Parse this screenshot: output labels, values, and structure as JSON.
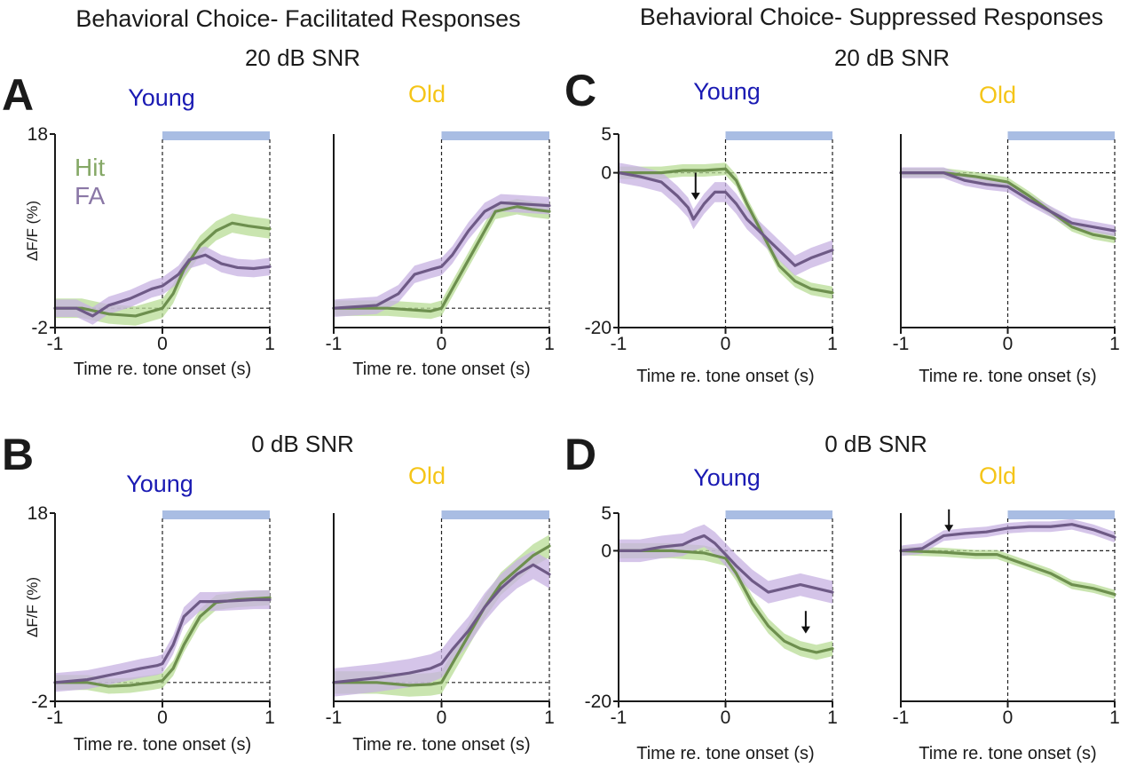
{
  "headers": {
    "left": "Behavioral Choice- Facilitated Responses",
    "right": "Behavioral Choice- Suppressed Responses"
  },
  "colors": {
    "young": "#1a1ab3",
    "old": "#f5c518",
    "hit": "#6d8f4e",
    "hit_band": "#b8dc95",
    "fa": "#6e5a86",
    "fa_band": "#c7b2e2",
    "tone_bar": "#a9bde3",
    "axis": "#1a1a1a"
  },
  "legend": {
    "hit": "Hit",
    "fa": "FA"
  },
  "chart_data": [
    {
      "type": "line",
      "panel": "A",
      "condition": "20 dB SNR",
      "group": "Young",
      "xlabel": "Time re. tone onset (s)",
      "ylabel": "ΔF/F (%)",
      "xlim": [
        -1,
        1
      ],
      "ylim": [
        -2,
        18
      ],
      "xticks": [
        "-1",
        "0",
        "1"
      ],
      "yticks": [
        "-2",
        "18"
      ],
      "tone_bar": [
        0,
        1
      ],
      "series": [
        {
          "name": "Hit",
          "x": [
            -1,
            -0.75,
            -0.5,
            -0.25,
            0,
            0.1,
            0.2,
            0.35,
            0.5,
            0.65,
            0.8,
            1
          ],
          "y": [
            0,
            0,
            -0.6,
            -0.8,
            0,
            1.5,
            4,
            6.5,
            8,
            8.8,
            8.5,
            8.2
          ],
          "err": 1
        },
        {
          "name": "FA",
          "x": [
            -1,
            -0.8,
            -0.65,
            -0.5,
            -0.3,
            -0.1,
            0,
            0.15,
            0.25,
            0.4,
            0.55,
            0.7,
            0.85,
            1
          ],
          "y": [
            0,
            0,
            -0.8,
            0.3,
            1,
            2,
            2.3,
            3.5,
            5,
            5.5,
            4.6,
            4.2,
            4.1,
            4.3
          ],
          "err": 0.9
        }
      ]
    },
    {
      "type": "line",
      "panel": "A",
      "condition": "20 dB SNR",
      "group": "Old",
      "xlabel": "Time re. tone onset (s)",
      "xlim": [
        -1,
        1
      ],
      "ylim": [
        -2,
        18
      ],
      "xticks": [
        "-1",
        "0",
        "1"
      ],
      "tone_bar": [
        0,
        1
      ],
      "series": [
        {
          "name": "Hit",
          "x": [
            -1,
            -0.5,
            -0.1,
            0,
            0.1,
            0.25,
            0.4,
            0.5,
            0.7,
            0.85,
            1
          ],
          "y": [
            0,
            0,
            -0.3,
            0,
            2,
            5,
            8,
            10,
            10.5,
            10.2,
            10
          ],
          "err": 0.8
        },
        {
          "name": "FA",
          "x": [
            -1,
            -0.6,
            -0.4,
            -0.25,
            -0.1,
            0,
            0.1,
            0.25,
            0.4,
            0.55,
            0.7,
            0.85,
            1
          ],
          "y": [
            0,
            0.3,
            1.5,
            3.5,
            4,
            4.3,
            5.5,
            8,
            10,
            10.9,
            10.8,
            10.7,
            10.6
          ],
          "err": 0.9
        }
      ]
    },
    {
      "type": "line",
      "panel": "B",
      "condition": "0 dB SNR",
      "group": "Young",
      "xlabel": "Time re. tone onset (s)",
      "ylabel": "ΔF/F (%)",
      "xlim": [
        -1,
        1
      ],
      "ylim": [
        -2,
        18
      ],
      "xticks": [
        "-1",
        "0",
        "1"
      ],
      "yticks": [
        "-2",
        "18"
      ],
      "tone_bar": [
        0,
        1
      ],
      "series": [
        {
          "name": "Hit",
          "x": [
            -1,
            -0.7,
            -0.5,
            -0.3,
            -0.1,
            0,
            0.1,
            0.2,
            0.35,
            0.5,
            0.7,
            0.85,
            1
          ],
          "y": [
            0,
            0,
            -0.4,
            -0.3,
            0,
            0.2,
            1.5,
            4,
            7,
            8.5,
            8.8,
            8.9,
            9
          ],
          "err": 0.8
        },
        {
          "name": "FA",
          "x": [
            -1,
            -0.7,
            -0.4,
            -0.2,
            -0.05,
            0,
            0.1,
            0.2,
            0.35,
            0.5,
            0.7,
            0.85,
            1
          ],
          "y": [
            0,
            0.3,
            1,
            1.5,
            1.8,
            2,
            4,
            7,
            8.6,
            8.6,
            8.7,
            8.8,
            8.8
          ],
          "err": 1
        }
      ]
    },
    {
      "type": "line",
      "panel": "B",
      "condition": "0 dB SNR",
      "group": "Old",
      "xlabel": "Time re. tone onset (s)",
      "xlim": [
        -1,
        1
      ],
      "ylim": [
        -2,
        18
      ],
      "xticks": [
        "-1",
        "0",
        "1"
      ],
      "tone_bar": [
        0,
        1
      ],
      "series": [
        {
          "name": "Hit",
          "x": [
            -1,
            -0.6,
            -0.3,
            -0.1,
            0,
            0.1,
            0.25,
            0.4,
            0.55,
            0.7,
            0.85,
            1
          ],
          "y": [
            0,
            0,
            -0.3,
            -0.2,
            0,
            2,
            5,
            8,
            10.5,
            12,
            13.5,
            14.5
          ],
          "err": 1.2
        },
        {
          "name": "FA",
          "x": [
            -1,
            -0.6,
            -0.3,
            -0.1,
            0,
            0.1,
            0.25,
            0.4,
            0.55,
            0.7,
            0.85,
            1
          ],
          "y": [
            0,
            0.5,
            1,
            1.5,
            2,
            3.5,
            5.5,
            8,
            10,
            11.5,
            12.5,
            11.5
          ],
          "err": 1.5
        }
      ]
    },
    {
      "type": "line",
      "panel": "C",
      "condition": "20 dB SNR",
      "group": "Young",
      "xlabel": "Time re. tone onset (s)",
      "xlim": [
        -1,
        1
      ],
      "ylim": [
        -20,
        5
      ],
      "xticks": [
        "-1",
        "0",
        "1"
      ],
      "yticks": [
        "5",
        "0",
        "-20"
      ],
      "tone_bar": [
        0,
        1
      ],
      "arrows": [
        {
          "x": -0.28,
          "y_from": 0,
          "y_to": -3.5
        }
      ],
      "series": [
        {
          "name": "Hit",
          "x": [
            -1,
            -0.6,
            -0.4,
            -0.2,
            0,
            0.1,
            0.2,
            0.35,
            0.5,
            0.65,
            0.8,
            1
          ],
          "y": [
            0,
            0,
            0.3,
            0.3,
            0.5,
            -1,
            -4,
            -8,
            -12,
            -14,
            -15,
            -15.5
          ],
          "err": 0.8
        },
        {
          "name": "FA",
          "x": [
            -1,
            -0.8,
            -0.6,
            -0.45,
            -0.35,
            -0.3,
            -0.2,
            -0.1,
            0,
            0.1,
            0.2,
            0.35,
            0.5,
            0.65,
            0.8,
            1
          ],
          "y": [
            0,
            -0.5,
            -1.2,
            -3,
            -4.5,
            -6,
            -4,
            -2.5,
            -2.5,
            -4,
            -6,
            -8,
            -10,
            -12,
            -11,
            -10
          ],
          "err": 1.3
        }
      ]
    },
    {
      "type": "line",
      "panel": "C",
      "condition": "20 dB SNR",
      "group": "Old",
      "xlabel": "Time re. tone onset (s)",
      "xlim": [
        -1,
        1
      ],
      "ylim": [
        -20,
        5
      ],
      "xticks": [
        "-1",
        "0",
        "1"
      ],
      "tone_bar": [
        0,
        1
      ],
      "series": [
        {
          "name": "Hit",
          "x": [
            -1,
            -0.6,
            -0.3,
            0,
            0.2,
            0.4,
            0.6,
            0.8,
            1
          ],
          "y": [
            0,
            0,
            -0.5,
            -1.2,
            -3,
            -5,
            -7,
            -8,
            -8.5
          ],
          "err": 0.6
        },
        {
          "name": "FA",
          "x": [
            -1,
            -0.6,
            -0.4,
            -0.2,
            0,
            0.2,
            0.4,
            0.6,
            0.8,
            1
          ],
          "y": [
            0,
            0,
            -1,
            -1.5,
            -1.8,
            -3.5,
            -5,
            -6.5,
            -7,
            -7.5
          ],
          "err": 0.7
        }
      ]
    },
    {
      "type": "line",
      "panel": "D",
      "condition": "0 dB SNR",
      "group": "Young",
      "xlabel": "Time re. tone onset (s)",
      "xlim": [
        -1,
        1
      ],
      "ylim": [
        -20,
        5
      ],
      "xticks": [
        "-1",
        "0",
        "1"
      ],
      "yticks": [
        "5",
        "0",
        "-20"
      ],
      "tone_bar": [
        0,
        1
      ],
      "arrows": [
        {
          "x": 0.75,
          "y_from": -8,
          "y_to": -11
        }
      ],
      "series": [
        {
          "name": "Hit",
          "x": [
            -1,
            -0.5,
            -0.2,
            0,
            0.1,
            0.25,
            0.4,
            0.55,
            0.7,
            0.85,
            1
          ],
          "y": [
            0,
            0,
            -0.3,
            -1,
            -3,
            -7,
            -10,
            -12,
            -13,
            -13.5,
            -13
          ],
          "err": 1
        },
        {
          "name": "FA",
          "x": [
            -1,
            -0.8,
            -0.6,
            -0.4,
            -0.3,
            -0.2,
            -0.1,
            0,
            0.1,
            0.25,
            0.4,
            0.55,
            0.7,
            0.85,
            1
          ],
          "y": [
            0,
            0,
            0.5,
            0.8,
            1.5,
            2,
            1,
            -0.5,
            -2,
            -4,
            -5.5,
            -5,
            -4.5,
            -5,
            -5.5
          ],
          "err": 1.5
        }
      ]
    },
    {
      "type": "line",
      "panel": "D",
      "condition": "0 dB SNR",
      "group": "Old",
      "xlabel": "Time re. tone onset (s)",
      "xlim": [
        -1,
        1
      ],
      "ylim": [
        -20,
        5
      ],
      "xticks": [
        "-1",
        "0",
        "1"
      ],
      "tone_bar": [
        0,
        1
      ],
      "arrows": [
        {
          "x": -0.55,
          "y_from": 5.5,
          "y_to": 2.5
        }
      ],
      "series": [
        {
          "name": "Hit",
          "x": [
            -1,
            -0.6,
            -0.3,
            -0.1,
            0,
            0.2,
            0.4,
            0.6,
            0.8,
            1
          ],
          "y": [
            0,
            -0.2,
            -0.5,
            -0.5,
            -1,
            -2,
            -3,
            -4.5,
            -5,
            -5.8
          ],
          "err": 0.6
        },
        {
          "name": "FA",
          "x": [
            -1,
            -0.8,
            -0.6,
            -0.4,
            -0.2,
            0,
            0.2,
            0.4,
            0.6,
            0.8,
            1
          ],
          "y": [
            0,
            0.3,
            2,
            2.3,
            2.5,
            3,
            3.2,
            3.2,
            3.5,
            2.8,
            1.8
          ],
          "err": 0.7
        }
      ]
    }
  ]
}
